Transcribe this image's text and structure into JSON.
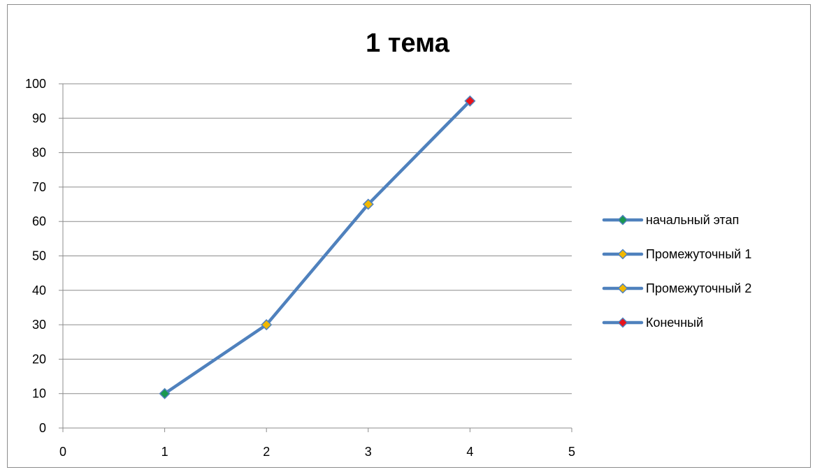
{
  "chart_data": {
    "type": "line",
    "title": "1 тема",
    "xlabel": "",
    "ylabel": "",
    "xlim": [
      0,
      5
    ],
    "ylim": [
      0,
      100
    ],
    "x_ticks": [
      "0",
      "1",
      "2",
      "3",
      "4",
      "5"
    ],
    "y_ticks": [
      "0",
      "10",
      "20",
      "30",
      "40",
      "50",
      "60",
      "70",
      "80",
      "90",
      "100"
    ],
    "grid": true,
    "legend_position": "right",
    "line_color": "#4f81bd",
    "series": [
      {
        "name": "начальный этап",
        "x": [
          1
        ],
        "y": [
          10
        ],
        "marker_color": "#1a9850"
      },
      {
        "name": "Промежуточный 1",
        "x": [
          2
        ],
        "y": [
          30
        ],
        "marker_color": "#f2b800"
      },
      {
        "name": "Промежуточный 2",
        "x": [
          3
        ],
        "y": [
          65
        ],
        "marker_color": "#f2b800"
      },
      {
        "name": "Конечный",
        "x": [
          4
        ],
        "y": [
          95
        ],
        "marker_color": "#e8141c"
      }
    ],
    "connected_line": {
      "x": [
        1,
        2,
        3,
        4
      ],
      "y": [
        10,
        30,
        65,
        95
      ]
    }
  }
}
